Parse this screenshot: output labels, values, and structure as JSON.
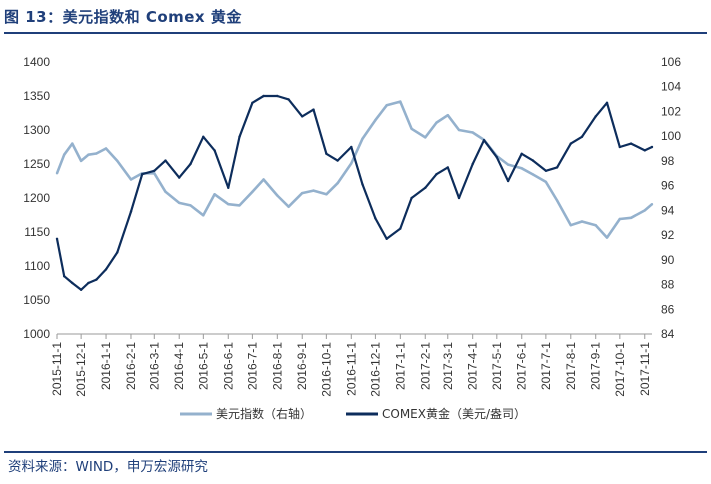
{
  "header": {
    "title": "图 13：美元指数和 Comex 黄金"
  },
  "footer": {
    "source": "资料来源：WIND，申万宏源研究"
  },
  "colors": {
    "gold": "#0d2d5c",
    "dxy": "#94b1cd",
    "title": "#1f3f7a",
    "axis": "#9a9a9a"
  },
  "chart_data": {
    "type": "line",
    "title": "",
    "left_axis": {
      "ylim": [
        1000,
        1400
      ],
      "ticks": [
        "1000",
        "1050",
        "1100",
        "1150",
        "1200",
        "1250",
        "1300",
        "1350",
        "1400"
      ]
    },
    "right_axis": {
      "ylim": [
        84,
        106
      ],
      "ticks": [
        "84",
        "86",
        "88",
        "90",
        "92",
        "94",
        "96",
        "98",
        "100",
        "102",
        "104",
        "106"
      ]
    },
    "x_tick_labels": [
      "2015-11-1",
      "2015-12-1",
      "2016-1-1",
      "2016-2-1",
      "2016-3-1",
      "2016-4-1",
      "2016-5-1",
      "2016-6-1",
      "2016-7-1",
      "2016-8-1",
      "2016-9-1",
      "2016-10-1",
      "2016-11-1",
      "2016-12-1",
      "2017-1-1",
      "2017-2-1",
      "2017-3-1",
      "2017-4-1",
      "2017-5-1",
      "2017-6-1",
      "2017-7-1",
      "2017-8-1",
      "2017-9-1",
      "2017-10-1",
      "2017-11-1"
    ],
    "legend_position": "bottom",
    "series": [
      {
        "name": "美元指数（右轴）",
        "axis": "right",
        "x": [
          "2015-11-01",
          "2015-11-10",
          "2015-11-20",
          "2015-12-01",
          "2015-12-10",
          "2015-12-20",
          "2016-01-01",
          "2016-01-15",
          "2016-02-01",
          "2016-02-15",
          "2016-03-01",
          "2016-03-15",
          "2016-04-01",
          "2016-04-15",
          "2016-05-01",
          "2016-05-15",
          "2016-06-01",
          "2016-06-15",
          "2016-07-01",
          "2016-07-15",
          "2016-08-01",
          "2016-08-15",
          "2016-09-01",
          "2016-09-15",
          "2016-10-01",
          "2016-10-15",
          "2016-11-01",
          "2016-11-15",
          "2016-12-01",
          "2016-12-15",
          "2017-01-01",
          "2017-01-15",
          "2017-02-01",
          "2017-02-15",
          "2017-03-01",
          "2017-03-15",
          "2017-04-01",
          "2017-04-15",
          "2017-05-01",
          "2017-05-15",
          "2017-06-01",
          "2017-06-15",
          "2017-07-01",
          "2017-07-15",
          "2017-08-01",
          "2017-08-15",
          "2017-09-01",
          "2017-09-15",
          "2017-10-01",
          "2017-10-15",
          "2017-11-01",
          "2017-11-10"
        ],
        "values": [
          97.0,
          98.5,
          99.4,
          98.0,
          98.5,
          98.6,
          99.0,
          98.0,
          96.5,
          97.0,
          97.0,
          95.5,
          94.6,
          94.4,
          93.6,
          95.3,
          94.5,
          94.4,
          95.5,
          96.5,
          95.2,
          94.3,
          95.4,
          95.6,
          95.3,
          96.2,
          97.8,
          99.8,
          101.3,
          102.5,
          102.8,
          100.6,
          99.9,
          101.1,
          101.7,
          100.5,
          100.3,
          99.7,
          98.4,
          97.7,
          97.4,
          96.9,
          96.3,
          94.8,
          92.8,
          93.1,
          92.8,
          91.8,
          93.3,
          93.4,
          94.0,
          94.5
        ]
      },
      {
        "name": "COMEX黄金（美元/盎司）",
        "axis": "left",
        "x": [
          "2015-11-01",
          "2015-11-10",
          "2015-11-20",
          "2015-12-01",
          "2015-12-10",
          "2015-12-20",
          "2016-01-01",
          "2016-01-15",
          "2016-02-01",
          "2016-02-15",
          "2016-03-01",
          "2016-03-15",
          "2016-04-01",
          "2016-04-15",
          "2016-05-01",
          "2016-05-15",
          "2016-06-01",
          "2016-06-15",
          "2016-07-01",
          "2016-07-15",
          "2016-08-01",
          "2016-08-15",
          "2016-09-01",
          "2016-09-15",
          "2016-10-01",
          "2016-10-15",
          "2016-11-01",
          "2016-11-15",
          "2016-12-01",
          "2016-12-15",
          "2017-01-01",
          "2017-01-15",
          "2017-02-01",
          "2017-02-15",
          "2017-03-01",
          "2017-03-15",
          "2017-04-01",
          "2017-04-15",
          "2017-05-01",
          "2017-05-15",
          "2017-06-01",
          "2017-06-15",
          "2017-07-01",
          "2017-07-15",
          "2017-08-01",
          "2017-08-15",
          "2017-09-01",
          "2017-09-15",
          "2017-10-01",
          "2017-10-15",
          "2017-11-01",
          "2017-11-10"
        ],
        "values": [
          1140,
          1085,
          1075,
          1065,
          1075,
          1080,
          1095,
          1120,
          1180,
          1235,
          1240,
          1255,
          1230,
          1250,
          1290,
          1270,
          1215,
          1290,
          1340,
          1350,
          1350,
          1345,
          1320,
          1330,
          1265,
          1255,
          1275,
          1220,
          1170,
          1140,
          1155,
          1200,
          1215,
          1235,
          1245,
          1200,
          1250,
          1285,
          1260,
          1225,
          1265,
          1255,
          1240,
          1245,
          1280,
          1290,
          1320,
          1340,
          1275,
          1280,
          1270,
          1275
        ]
      }
    ]
  }
}
